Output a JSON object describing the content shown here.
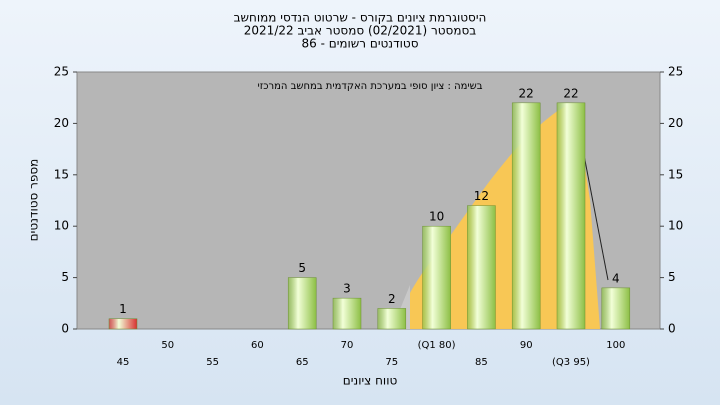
{
  "chart_data": {
    "type": "bar",
    "title": "היסטוגרמת ציונים בקורס - שרטוט הנדסי ממוחשב",
    "subtitle": "בסמסטר  (02/2021)  סמסטר אביב 2021/22",
    "subtitle2": "סטודנטים רשומים - 86",
    "annotation": "בשימה : ציון סופי במערכת האקדמית במחשב המרכזי",
    "y_label": "מספר סטודנטים",
    "x_label": "טווח ציונים",
    "categories": [
      "45",
      "50",
      "55",
      "60",
      "65",
      "70",
      "75",
      "(Q1 80)",
      "85",
      "90",
      "(Q3 95)",
      "100"
    ],
    "values": [
      1,
      0,
      0,
      0,
      5,
      3,
      2,
      10,
      12,
      22,
      22,
      4
    ],
    "colors": [
      "#d83030",
      "#8dbf45",
      "#8dbf45",
      "#8dbf45",
      "#8dbf45",
      "#8dbf45",
      "#8dbf45",
      "#8dbf45",
      "#8dbf45",
      "#8dbf45",
      "#8dbf45",
      "#8dbf45"
    ],
    "ylim": [
      0,
      25
    ],
    "yticks": [
      0,
      5,
      10,
      15,
      20,
      25
    ]
  }
}
